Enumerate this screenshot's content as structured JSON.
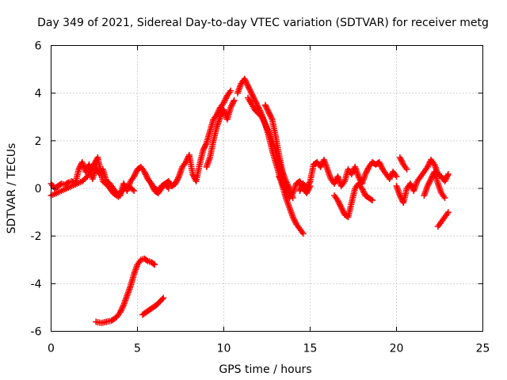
{
  "chart_data": {
    "type": "scatter",
    "title": "Day 349 of 2021, Sidereal Day-to-day VTEC variation (SDTVAR) for receiver metg",
    "xlabel": "GPS time / hours",
    "ylabel": "SDTVAR / TECUs",
    "xlim": [
      0,
      25
    ],
    "ylim": [
      -6,
      6
    ],
    "xticks": [
      0,
      5,
      10,
      15,
      20,
      25
    ],
    "yticks": [
      -6,
      -4,
      -2,
      0,
      2,
      4,
      6
    ],
    "xtick_labels": [
      "0",
      "5",
      "10",
      "15",
      "20",
      "25"
    ],
    "ytick_labels": [
      "-6",
      "-4",
      "-2",
      "0",
      "2",
      "4",
      "6"
    ],
    "grid": true,
    "marker": "plus",
    "series": [
      {
        "name": "SDTVAR",
        "color": "#ff0000",
        "segments": [
          {
            "x": [
              0.0,
              0.2,
              0.4,
              0.6,
              0.8,
              1.0,
              1.2,
              1.4,
              1.6,
              1.8,
              2.0,
              2.2,
              2.4,
              2.6,
              2.8,
              3.0,
              3.2,
              3.4,
              3.6,
              3.8,
              4.0,
              4.2,
              4.4,
              4.6,
              4.8,
              5.0,
              5.2,
              5.4,
              5.6,
              5.8,
              6.0,
              6.2,
              6.4,
              6.6,
              6.8
            ],
            "y": [
              0.2,
              0.0,
              0.1,
              0.2,
              0.15,
              0.25,
              0.3,
              0.2,
              0.8,
              1.1,
              0.7,
              1.0,
              0.4,
              0.9,
              0.6,
              0.8,
              0.3,
              0.2,
              0.0,
              -0.2,
              -0.3,
              0.2,
              -0.1,
              0.3,
              0.5,
              0.8,
              0.9,
              0.7,
              0.4,
              0.2,
              0.0,
              -0.1,
              0.1,
              0.2,
              0.0
            ]
          },
          {
            "x": [
              0.0,
              0.3,
              0.6,
              0.9,
              1.2,
              1.5,
              1.8,
              2.1,
              2.4,
              2.7,
              3.0,
              3.3,
              3.6,
              3.9,
              4.2,
              4.5,
              4.8
            ],
            "y": [
              -0.3,
              -0.2,
              -0.1,
              0.0,
              0.1,
              0.2,
              0.3,
              0.5,
              0.9,
              1.3,
              0.3,
              0.1,
              -0.2,
              -0.35,
              0.0,
              0.1,
              -0.1
            ]
          },
          {
            "x": [
              5.6,
              5.8,
              6.0,
              6.2,
              6.4,
              6.6,
              6.8,
              7.0,
              7.2,
              7.4,
              7.6,
              7.8,
              8.0,
              8.2,
              8.4,
              8.6,
              8.8,
              9.0,
              9.2,
              9.4,
              9.6,
              9.8,
              10.0,
              10.2,
              10.4
            ],
            "y": [
              0.4,
              0.2,
              -0.1,
              -0.2,
              0.0,
              0.2,
              0.3,
              0.1,
              0.2,
              0.5,
              0.9,
              1.1,
              1.4,
              0.6,
              0.3,
              1.0,
              1.6,
              1.9,
              2.4,
              2.9,
              3.1,
              3.4,
              3.6,
              3.9,
              4.1
            ]
          },
          {
            "x": [
              9.0,
              9.2,
              9.4,
              9.6,
              9.8,
              10.0,
              10.2,
              10.4,
              10.6
            ],
            "y": [
              0.9,
              1.3,
              2.0,
              2.6,
              3.0,
              3.3,
              2.9,
              3.4,
              3.7
            ]
          },
          {
            "x": [
              10.8,
              11.0,
              11.2,
              11.4,
              11.6,
              11.8,
              12.0,
              12.2,
              12.4,
              12.6,
              12.8,
              13.0,
              13.2,
              13.4,
              13.6,
              13.8,
              14.0,
              14.2,
              14.4,
              14.6
            ],
            "y": [
              4.0,
              4.4,
              4.6,
              4.3,
              4.0,
              3.7,
              3.4,
              3.1,
              2.7,
              2.2,
              1.6,
              1.1,
              0.6,
              0.1,
              -0.4,
              -0.8,
              -1.2,
              -1.5,
              -1.7,
              -1.9
            ]
          },
          {
            "x": [
              11.4,
              11.8,
              12.2,
              12.6,
              13.0,
              13.4
            ],
            "y": [
              3.8,
              3.3,
              3.0,
              2.4,
              1.6,
              0.6
            ]
          },
          {
            "x": [
              12.4,
              12.6,
              12.8,
              13.0,
              13.2,
              13.4,
              13.6,
              13.8,
              14.0
            ],
            "y": [
              3.5,
              3.2,
              2.9,
              2.2,
              1.4,
              0.7,
              0.3,
              0.0,
              -0.4
            ]
          },
          {
            "x": [
              13.2,
              13.4,
              13.6,
              13.8,
              14.0,
              14.2,
              14.4,
              14.6,
              14.8,
              15.0
            ],
            "y": [
              0.5,
              0.2,
              -0.1,
              -0.4,
              -0.2,
              0.2,
              0.3,
              0.0,
              -0.2,
              0.1
            ]
          },
          {
            "x": [
              14.4,
              14.6,
              14.8,
              15.0,
              15.2,
              15.4,
              15.6,
              15.8,
              16.0,
              16.2,
              16.4,
              16.6,
              16.8,
              17.0,
              17.2,
              17.4,
              17.6,
              17.8,
              18.0,
              18.2,
              18.4,
              18.6,
              18.8,
              19.0,
              19.2,
              19.4,
              19.6,
              19.8,
              20.0
            ],
            "y": [
              -0.1,
              0.2,
              0.0,
              0.3,
              1.0,
              1.1,
              0.9,
              1.2,
              0.8,
              0.4,
              0.2,
              0.5,
              0.1,
              0.3,
              0.8,
              0.6,
              0.9,
              0.5,
              0.2,
              0.6,
              0.9,
              1.1,
              1.0,
              1.1,
              0.8,
              0.6,
              0.4,
              0.7,
              0.5
            ]
          },
          {
            "x": [
              16.4,
              16.6,
              16.8,
              17.0,
              17.2,
              17.4,
              17.6,
              17.8,
              18.0,
              18.2,
              18.4,
              18.6
            ],
            "y": [
              -0.3,
              -0.5,
              -0.8,
              -1.1,
              -1.2,
              -0.6,
              0.0,
              0.2,
              0.0,
              -0.3,
              -0.4,
              -0.5
            ]
          },
          {
            "x": [
              20.0,
              20.2,
              20.4,
              20.6,
              20.8,
              21.0,
              21.2,
              21.4,
              21.6,
              21.8,
              22.0,
              22.2,
              22.4,
              22.6,
              22.8,
              23.0
            ],
            "y": [
              0.1,
              -0.3,
              -0.6,
              0.0,
              0.2,
              -0.1,
              0.3,
              0.5,
              0.7,
              0.9,
              1.2,
              1.0,
              0.6,
              0.5,
              0.3,
              0.6
            ]
          },
          {
            "x": [
              21.6,
              21.8,
              22.0,
              22.2,
              22.4,
              22.6,
              22.8
            ],
            "y": [
              -0.3,
              0.1,
              0.4,
              0.7,
              0.2,
              -0.2,
              -0.4
            ]
          },
          {
            "x": [
              20.2,
              20.4,
              20.6
            ],
            "y": [
              1.3,
              1.0,
              0.8
            ]
          },
          {
            "x": [
              22.4,
              22.6,
              22.8,
              23.0
            ],
            "y": [
              -1.6,
              -1.4,
              -1.2,
              -1.0
            ]
          },
          {
            "x": [
              2.6,
              2.9,
              3.2,
              3.5,
              3.8,
              4.0,
              4.2,
              4.4,
              4.6,
              4.8,
              5.0,
              5.2,
              5.4,
              5.6,
              5.8,
              6.0
            ],
            "y": [
              -5.6,
              -5.65,
              -5.6,
              -5.55,
              -5.4,
              -5.2,
              -4.9,
              -4.5,
              -4.1,
              -3.6,
              -3.2,
              -3.0,
              -2.95,
              -3.05,
              -3.1,
              -3.2
            ]
          },
          {
            "x": [
              5.3,
              5.5,
              5.7,
              5.9,
              6.1,
              6.3,
              6.5
            ],
            "y": [
              -5.3,
              -5.2,
              -5.1,
              -5.0,
              -4.9,
              -4.75,
              -4.6
            ]
          }
        ]
      }
    ]
  }
}
